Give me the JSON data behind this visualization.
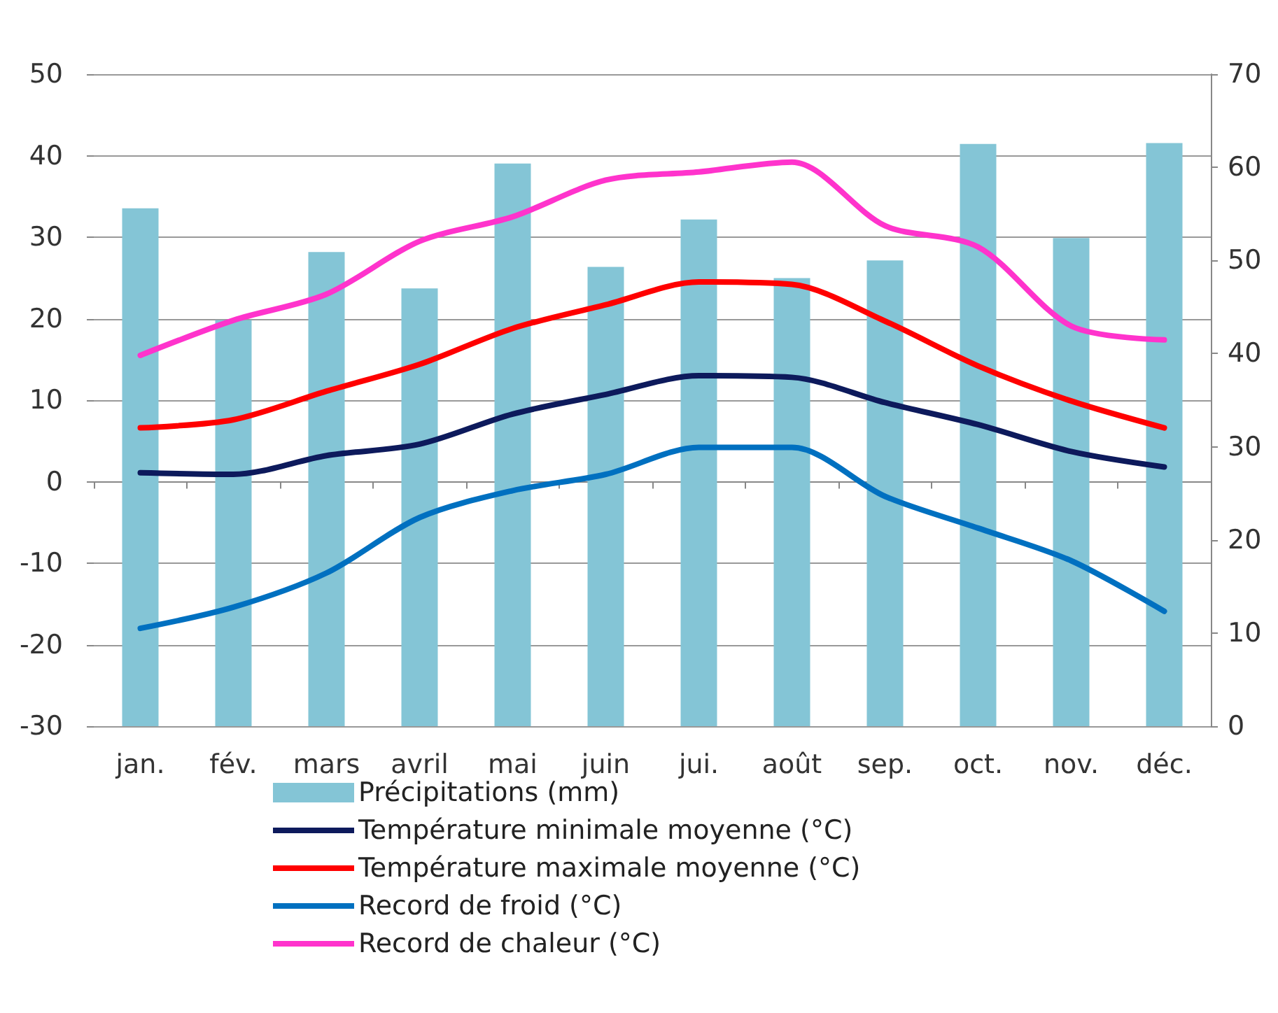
{
  "chart_data": {
    "type": "line",
    "categories": [
      "jan.",
      "fév.",
      "mars",
      "avril",
      "mai",
      "juin",
      "jui.",
      "août",
      "sep.",
      "oct.",
      "nov.",
      "déc."
    ],
    "series": [
      {
        "name": "Précipitations (mm)",
        "type": "bar",
        "axis": "y2",
        "color": "#84c5d6",
        "values": [
          55.6,
          43.6,
          50.9,
          47,
          60.4,
          49.3,
          54.4,
          48.1,
          50,
          62.5,
          52.4,
          62.6
        ]
      },
      {
        "name": "Température minimale moyenne (°C)",
        "color": "#0d1a5c",
        "values": [
          1.1,
          0.9,
          3.2,
          4.6,
          8.3,
          10.7,
          13,
          12.8,
          9.7,
          7,
          3.7,
          1.8
        ]
      },
      {
        "name": "Température maximale moyenne (°C)",
        "color": "#ff0000",
        "values": [
          6.6,
          7.6,
          11.1,
          14.4,
          18.8,
          21.7,
          24.5,
          24.2,
          19.7,
          14.2,
          9.9,
          6.6
        ]
      },
      {
        "name": "Record de froid (°C)",
        "color": "#0070c0",
        "values": [
          -18,
          -15.4,
          -11.2,
          -4.4,
          -1.1,
          0.9,
          4.2,
          4.2,
          -1.8,
          -5.7,
          -9.7,
          -15.9
        ]
      },
      {
        "name": "Record de chaleur (°C)",
        "color": "#ff33cc",
        "values": [
          15.5,
          19.8,
          23,
          29.5,
          32.5,
          37,
          38,
          39.2,
          31.4,
          28.8,
          19.1,
          17.4
        ]
      }
    ],
    "ylim": [
      -30,
      50
    ],
    "yticks": [
      -30,
      -20,
      -10,
      0,
      10,
      20,
      30,
      40,
      50
    ],
    "y2lim": [
      0,
      70
    ],
    "y2ticks": [
      0,
      10,
      20,
      30,
      40,
      50,
      60,
      70
    ],
    "grid": "y",
    "legend": "bottom",
    "marker": "none",
    "line_style": "solid"
  }
}
